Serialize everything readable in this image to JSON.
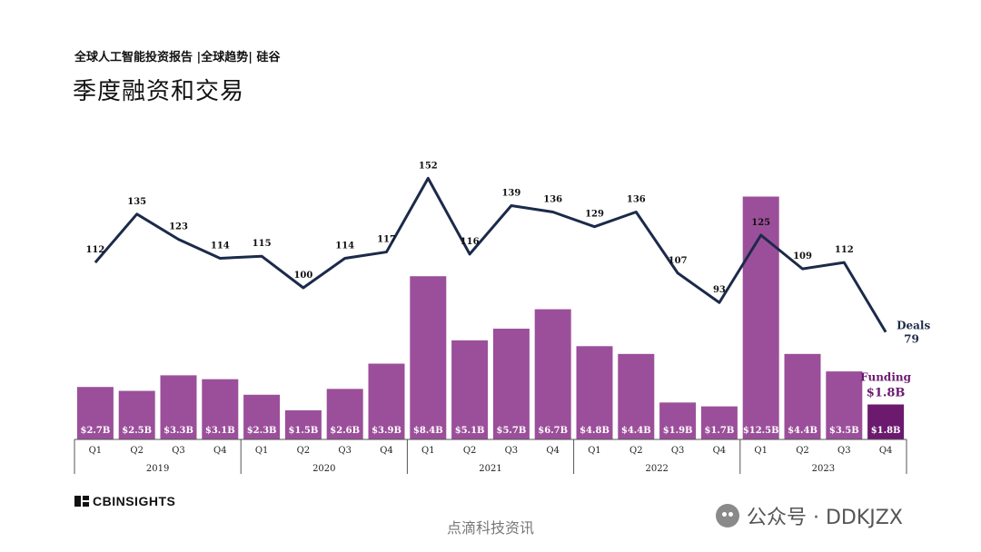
{
  "header": {
    "subtitle": "全球人工智能投资报告 |全球趋势| 硅谷",
    "title": "季度融资和交易"
  },
  "colors": {
    "bar": "#9b4f9a",
    "bar_highlight": "#6b1a6e",
    "line": "#1c2a4a",
    "axis": "#555555"
  },
  "chart_data": {
    "type": "bar",
    "series": [
      {
        "name": "Funding",
        "value_labels": [
          "$2.7B",
          "$2.5B",
          "$3.3B",
          "$3.1B",
          "$2.3B",
          "$1.5B",
          "$2.6B",
          "$3.9B",
          "$8.4B",
          "$5.1B",
          "$5.7B",
          "$6.7B",
          "$4.8B",
          "$4.4B",
          "$1.9B",
          "$1.7B",
          "$12.5B",
          "$4.4B",
          "$3.5B",
          "$1.8B"
        ],
        "values": [
          2.7,
          2.5,
          3.3,
          3.1,
          2.3,
          1.5,
          2.6,
          3.9,
          8.4,
          5.1,
          5.7,
          6.7,
          4.8,
          4.4,
          1.9,
          1.7,
          12.5,
          4.4,
          3.5,
          1.8
        ],
        "unit": "$B",
        "end_label": "Funding",
        "end_value_label": "$1.8B"
      },
      {
        "name": "Deals",
        "type": "line",
        "values": [
          112,
          135,
          123,
          114,
          115,
          100,
          114,
          117,
          152,
          116,
          139,
          136,
          129,
          136,
          107,
          93,
          125,
          109,
          112,
          79
        ],
        "end_label": "Deals",
        "end_value_label": "79"
      }
    ],
    "categories": [
      "Q1",
      "Q2",
      "Q3",
      "Q4",
      "Q1",
      "Q2",
      "Q3",
      "Q4",
      "Q1",
      "Q2",
      "Q3",
      "Q4",
      "Q1",
      "Q2",
      "Q3",
      "Q4",
      "Q1",
      "Q2",
      "Q3",
      "Q4"
    ],
    "years": [
      "2019",
      "2020",
      "2021",
      "2022",
      "2023"
    ],
    "highlight_index": 19
  },
  "footer": {
    "logo_text": "CBINSIGHTS",
    "watermark_bottom": "点滴科技资讯",
    "watermark_right": "公众号 · DDKJZX"
  }
}
